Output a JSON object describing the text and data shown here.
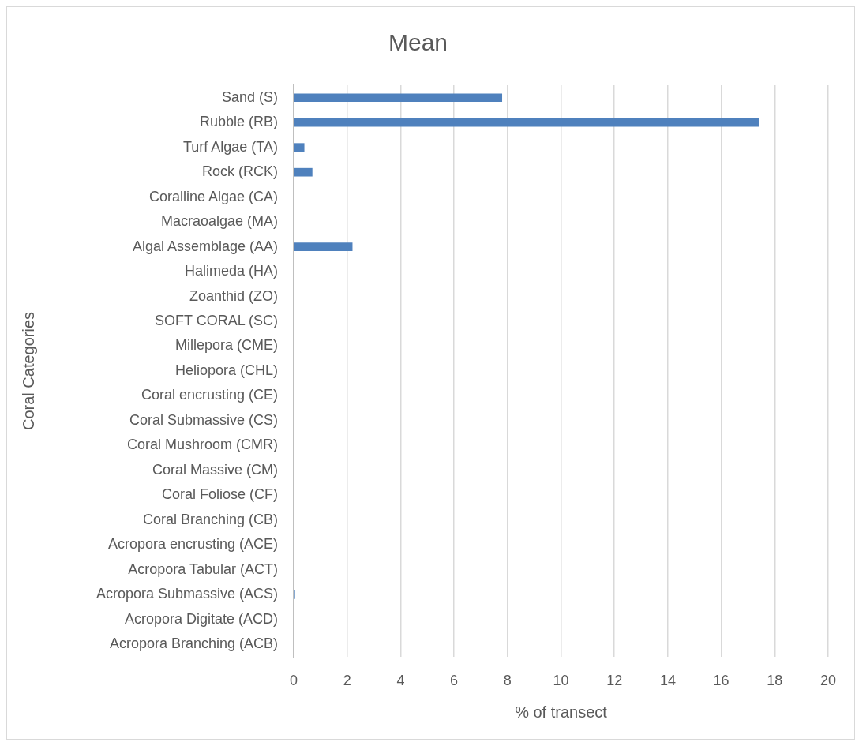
{
  "chart_data": {
    "type": "bar",
    "title": "Mean",
    "xlabel": "% of transect",
    "ylabel": "Coral Categories",
    "orientation": "horizontal",
    "categories": [
      "Sand (S)",
      "Rubble (RB)",
      "Turf Algae (TA)",
      "Rock (RCK)",
      "Coralline Algae (CA)",
      "Macraoalgae (MA)",
      "Algal Assemblage (AA)",
      "Halimeda (HA)",
      "Zoanthid (ZO)",
      "SOFT CORAL (SC)",
      "Millepora (CME)",
      "Heliopora (CHL)",
      "Coral encrusting (CE)",
      "Coral Submassive (CS)",
      "Coral Mushroom (CMR)",
      "Coral Massive (CM)",
      "Coral Foliose (CF)",
      "Coral Branching (CB)",
      "Acropora encrusting (ACE)",
      "Acropora Tabular (ACT)",
      "Acropora Submassive (ACS)",
      "Acropora Digitate (ACD)",
      "Acropora Branching (ACB)"
    ],
    "values": [
      7.8,
      17.4,
      0.4,
      0.7,
      0,
      0,
      2.2,
      0,
      0,
      0,
      0,
      0,
      0,
      0,
      0,
      0,
      0,
      0,
      0,
      0,
      0.05,
      0,
      0
    ],
    "color": "#4f81bd",
    "xlim": [
      0,
      20
    ],
    "xticks": [
      0,
      2,
      4,
      6,
      8,
      10,
      12,
      14,
      16,
      18,
      20
    ],
    "grid": "x"
  }
}
